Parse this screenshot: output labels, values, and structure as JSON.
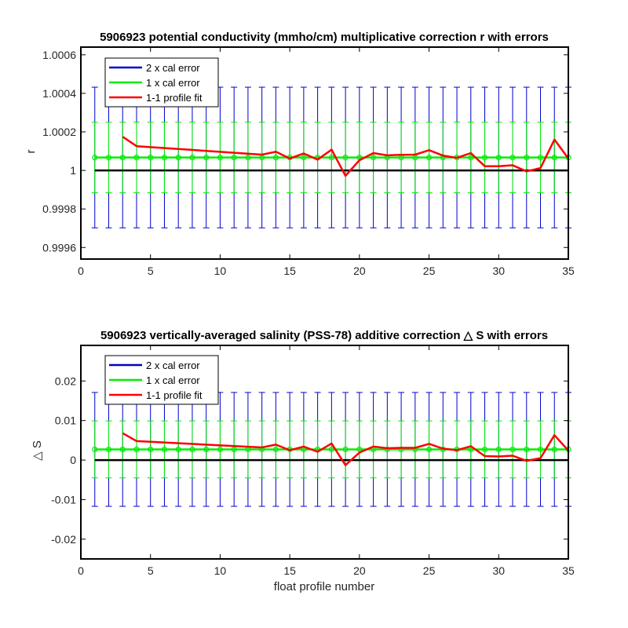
{
  "chart_data": [
    {
      "type": "line",
      "title": "5906923 potential conductivity (mmho/cm) multiplicative correction r with errors",
      "xlabel": "",
      "ylabel": "r",
      "xlim": [
        0,
        35
      ],
      "ylim": [
        0.99954,
        1.00064
      ],
      "xticks": [
        0,
        5,
        10,
        15,
        20,
        25,
        30,
        35
      ],
      "yticks": [
        0.9996,
        0.9998,
        1,
        1.0002,
        1.0004,
        1.0006
      ],
      "ytick_labels": [
        "0.9996",
        "0.9998",
        "1",
        "1.0002",
        "1.0004",
        "1.0006"
      ],
      "reference_line": 1,
      "legend": {
        "position": "top-left",
        "entries": [
          "2 x cal error",
          "1 x cal error",
          "1-1 profile fit"
        ]
      },
      "colors": {
        "two_cal": "#0000cc",
        "one_cal": "#00ee00",
        "fit": "#ff0000",
        "reference": "#000000"
      },
      "errorbars_x": [
        1,
        2,
        3,
        4,
        5,
        6,
        7,
        8,
        9,
        10,
        11,
        12,
        13,
        14,
        15,
        16,
        17,
        18,
        19,
        20,
        21,
        22,
        23,
        24,
        25,
        26,
        27,
        28,
        29,
        30,
        31,
        32,
        33,
        34,
        35
      ],
      "calibration_value": 1.000067,
      "two_cal_error": 0.000365,
      "one_cal_error": 0.000183,
      "series": [
        {
          "name": "1-1 profile fit",
          "x": [
            3,
            4,
            13,
            14,
            15,
            16,
            17,
            18,
            19,
            20,
            21,
            22,
            23,
            24,
            25,
            26,
            27,
            28,
            29,
            30,
            31,
            32,
            33,
            34,
            35
          ],
          "values": [
            1.000175,
            1.000126,
            1.000082,
            1.000097,
            1.000062,
            1.000088,
            1.000056,
            1.000108,
            0.999972,
            1.000053,
            1.00009,
            1.000078,
            1.000081,
            1.000082,
            1.000105,
            1.000077,
            1.000065,
            1.00009,
            1.000022,
            1.000022,
            1.000027,
            0.999995,
            1.000012,
            1.00016,
            1.000062
          ]
        }
      ]
    },
    {
      "type": "line",
      "title": "5906923 vertically-averaged salinity (PSS-78) additive correction △ S with errors",
      "xlabel": "float profile number",
      "ylabel": "△ S",
      "xlim": [
        0,
        35
      ],
      "ylim": [
        -0.025,
        0.029
      ],
      "xticks": [
        0,
        5,
        10,
        15,
        20,
        25,
        30,
        35
      ],
      "yticks": [
        -0.02,
        -0.01,
        0,
        0.01,
        0.02
      ],
      "ytick_labels": [
        "-0.02",
        "-0.01",
        "0",
        "0.01",
        "0.02"
      ],
      "reference_line": 0,
      "legend": {
        "position": "top-left",
        "entries": [
          "2 x cal error",
          "1 x cal error",
          "1-1 profile fit"
        ]
      },
      "colors": {
        "two_cal": "#0000cc",
        "one_cal": "#00ee00",
        "fit": "#ff0000",
        "reference": "#000000"
      },
      "errorbars_x": [
        1,
        2,
        3,
        4,
        5,
        6,
        7,
        8,
        9,
        10,
        11,
        12,
        13,
        14,
        15,
        16,
        17,
        18,
        19,
        20,
        21,
        22,
        23,
        24,
        25,
        26,
        27,
        28,
        29,
        30,
        31,
        32,
        33,
        34,
        35
      ],
      "calibration_value": 0.0027,
      "two_cal_error": 0.0144,
      "one_cal_error": 0.0072,
      "series": [
        {
          "name": "1-1 profile fit",
          "x": [
            3,
            4,
            13,
            14,
            15,
            16,
            17,
            18,
            19,
            20,
            21,
            22,
            23,
            24,
            25,
            26,
            27,
            28,
            29,
            30,
            31,
            32,
            33,
            34,
            35
          ],
          "values": [
            0.0068,
            0.0048,
            0.0032,
            0.0039,
            0.0025,
            0.0034,
            0.0021,
            0.0042,
            -0.0013,
            0.0019,
            0.0034,
            0.003,
            0.0031,
            0.0031,
            0.0041,
            0.0029,
            0.0025,
            0.0035,
            0.001,
            0.0009,
            0.0011,
            -0.0002,
            0.0005,
            0.0063,
            0.0024
          ]
        }
      ]
    }
  ]
}
